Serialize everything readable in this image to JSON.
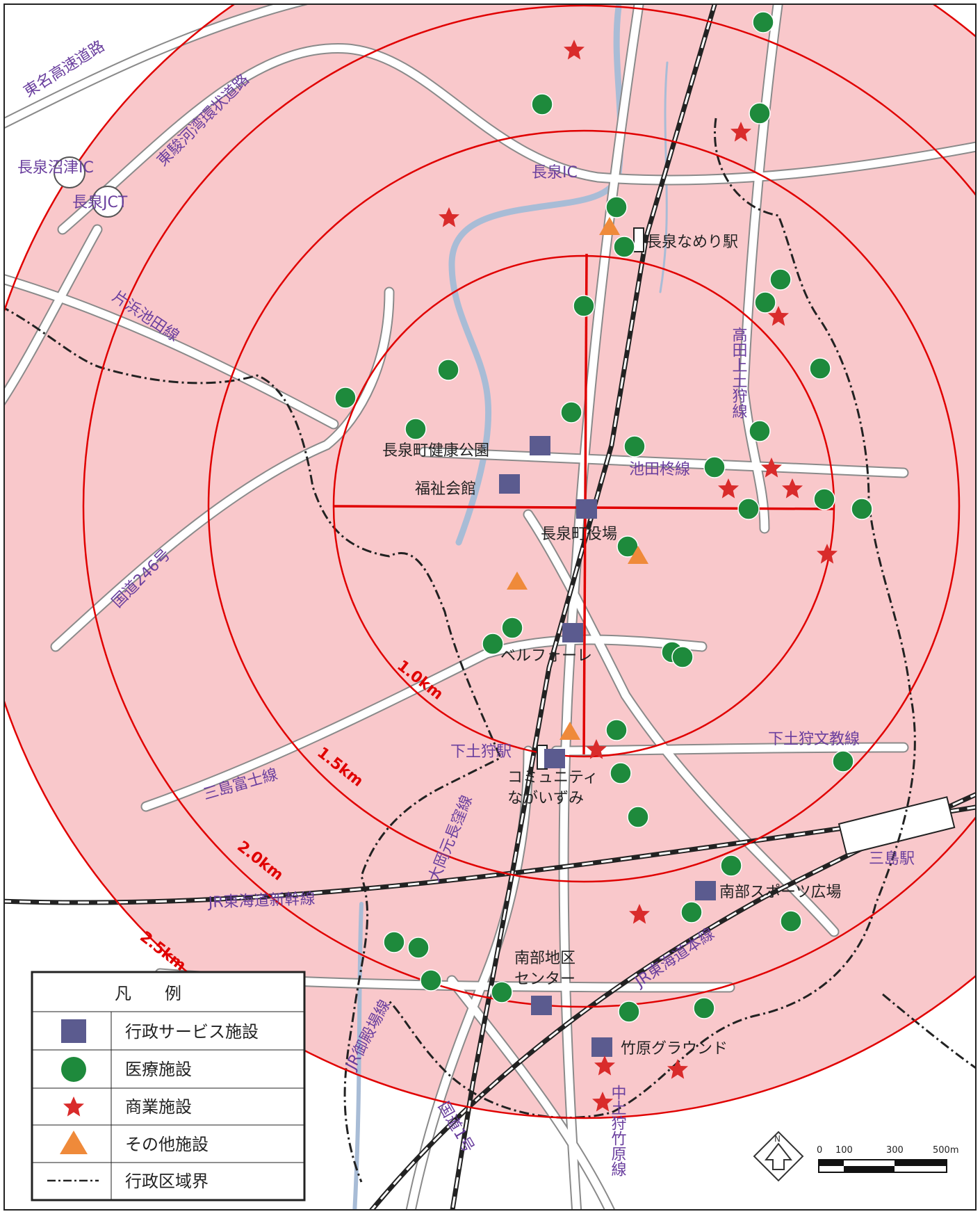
{
  "map": {
    "colors": {
      "buffer_fill": "#f9c8cb",
      "ring_stroke": "#e00000",
      "road": "#ffffff",
      "road_edge": "#8a8a8a",
      "river": "#a8bcd6",
      "boundary": "#222222",
      "admin_service": "#5b5b8f",
      "medical": "#1e8a3c",
      "commercial": "#d92b2b",
      "other": "#ef8a3a"
    },
    "ring_labels": [
      "1.0km",
      "1.5km",
      "2.0km",
      "2.5km"
    ],
    "road_labels": {
      "tomei": "東名高速道路",
      "tosuruga": "東駿河湾環状道路",
      "katahama": "片浜池田線",
      "route246": "国道246号",
      "mishimafuji": "三島富士線",
      "ohata": "大岡元長窪線",
      "shinkansen": "JR東海道新幹線",
      "gotemba": "JR御殿場線",
      "tokaido": "JR東海道本線",
      "route1": "国道1号",
      "ikedahiiragi": "池田柊線",
      "takadakami": "高田上土狩線",
      "shimotogari_bunkyo": "下土狩文教線",
      "nakatogari": "中土狩竹原線"
    },
    "place_labels": {
      "nagaizumi_numazu_ic": "長泉沼津IC",
      "nagaizumi_jct": "長泉JCT",
      "nagaizumi_ic": "長泉IC",
      "nagaizumi_nameri_station": "長泉なめり駅",
      "shimotogari_station": "下土狩駅",
      "mishima_station": "三島駅",
      "health_park": "長泉町健康公園",
      "welfare_hall": "福祉会館",
      "town_hall": "長泉町役場",
      "bellfore": "ベルフォーレ",
      "community_1": "コミュニティ",
      "community_2": "ながいずみ",
      "south_sports": "南部スポーツ広場",
      "south_center_1": "南部地区",
      "south_center_2": "センター",
      "takehara_ground": "竹原グラウンド"
    },
    "legend": {
      "title": "凡　　例",
      "items": [
        {
          "label": "行政サービス施設",
          "symbol": "square"
        },
        {
          "label": "医療施設",
          "symbol": "circle"
        },
        {
          "label": "商業施設",
          "symbol": "star"
        },
        {
          "label": "その他施設",
          "symbol": "triangle"
        },
        {
          "label": "行政区域界",
          "symbol": "dash-dot-line"
        }
      ]
    },
    "scale_bar": {
      "ticks": [
        "0",
        "100",
        "300",
        "500m"
      ]
    },
    "north_arrow": "N"
  }
}
